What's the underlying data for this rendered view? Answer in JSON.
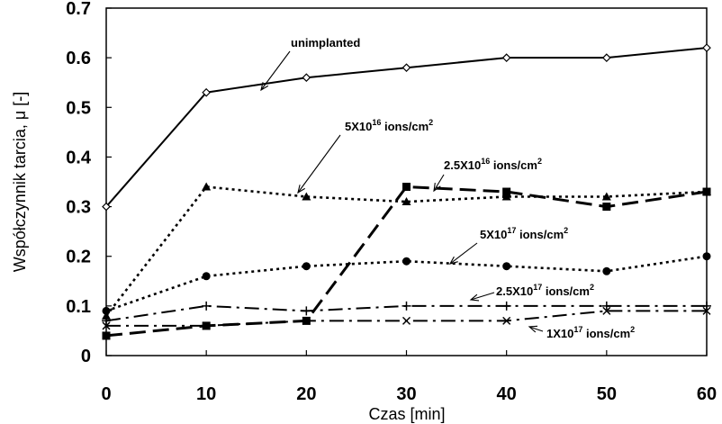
{
  "chart_data": {
    "type": "line",
    "xlabel": "Czas [min]",
    "ylabel": "Współczynnik tarcia, μ [-]",
    "xlim": [
      0,
      60
    ],
    "ylim": [
      0,
      0.7
    ],
    "x_ticks": [
      "0",
      "10",
      "20",
      "30",
      "40",
      "50",
      "60"
    ],
    "y_ticks": [
      "0",
      "0.1",
      "0.2",
      "0.3",
      "0.4",
      "0.5",
      "0.6",
      "0.7"
    ],
    "grid": false,
    "series": [
      {
        "name": "unimplanted",
        "x": [
          0,
          10,
          20,
          30,
          40,
          50,
          60
        ],
        "y": [
          0.3,
          0.53,
          0.56,
          0.58,
          0.6,
          0.6,
          0.62
        ],
        "style": "solid",
        "marker": "open-diamond"
      },
      {
        "name": "5X10^16 ions/cm^2",
        "x": [
          0,
          10,
          20,
          30,
          40,
          50,
          60
        ],
        "y": [
          0.08,
          0.34,
          0.32,
          0.31,
          0.32,
          0.32,
          0.33
        ],
        "style": "dotted",
        "marker": "triangle"
      },
      {
        "name": "2.5X10^16 ions/cm^2",
        "x": [
          0,
          10,
          20,
          30,
          40,
          50,
          60
        ],
        "y": [
          0.04,
          0.06,
          0.07,
          0.34,
          0.33,
          0.3,
          0.33
        ],
        "style": "dashed",
        "marker": "square"
      },
      {
        "name": "5X10^17 ions/cm^2",
        "x": [
          0,
          10,
          20,
          30,
          40,
          50,
          60
        ],
        "y": [
          0.09,
          0.16,
          0.18,
          0.19,
          0.18,
          0.17,
          0.2
        ],
        "style": "dotted",
        "marker": "circle"
      },
      {
        "name": "2.5X10^17 ions/cm^2",
        "x": [
          0,
          10,
          20,
          30,
          40,
          50,
          60
        ],
        "y": [
          0.07,
          0.1,
          0.09,
          0.1,
          0.1,
          0.1,
          0.1
        ],
        "style": "dash-dot",
        "marker": "plus"
      },
      {
        "name": "1X10^17 ions/cm^2",
        "x": [
          0,
          10,
          20,
          30,
          40,
          50,
          60
        ],
        "y": [
          0.06,
          0.06,
          0.07,
          0.07,
          0.07,
          0.09,
          0.09
        ],
        "style": "dash-dot",
        "marker": "x"
      }
    ],
    "annotations": [
      {
        "series": 0,
        "text": "unimplanted",
        "base": "unimplanted",
        "exp": "",
        "unit": "",
        "uexp": ""
      },
      {
        "series": 1,
        "text": "5X10^16 ions/cm^2",
        "base": "5X10",
        "exp": "16",
        "unit": " ions/cm",
        "uexp": "2"
      },
      {
        "series": 2,
        "text": "2.5X10^16 ions/cm^2",
        "base": "2.5X10",
        "exp": "16",
        "unit": " ions/cm",
        "uexp": "2"
      },
      {
        "series": 3,
        "text": "5X10^17 ions/cm^2",
        "base": "5X10",
        "exp": "17",
        "unit": " ions/cm",
        "uexp": "2"
      },
      {
        "series": 4,
        "text": "2.5X10^17 ions/cm^2",
        "base": "2.5X10",
        "exp": "17",
        "unit": " ions/cm",
        "uexp": "2"
      },
      {
        "series": 5,
        "text": "1X10^17 ions/cm^2",
        "base": "1X10",
        "exp": "17",
        "unit": " ions/cm",
        "uexp": "2"
      }
    ]
  }
}
